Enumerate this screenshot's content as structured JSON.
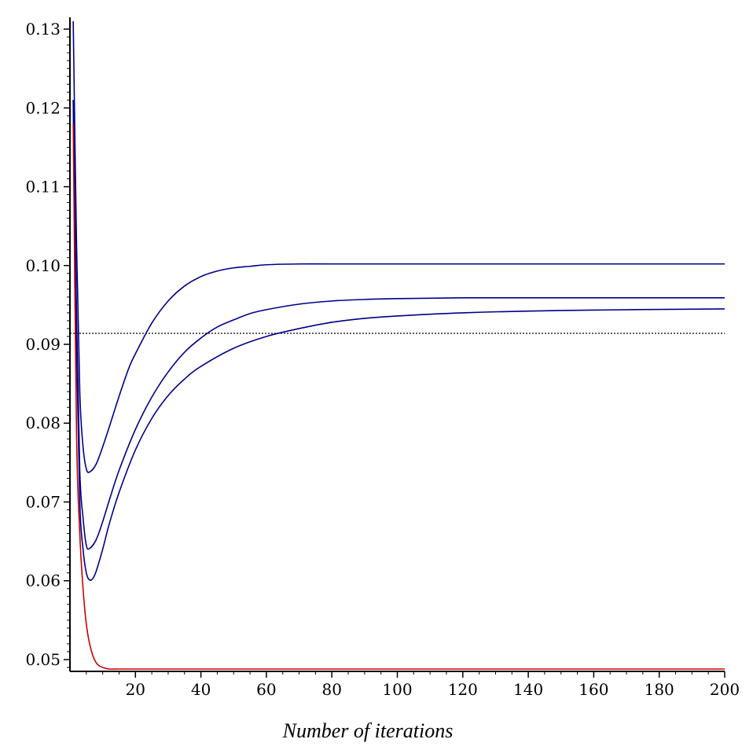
{
  "chart_data": {
    "type": "line",
    "title": "",
    "xlabel": "Number of iterations",
    "ylabel": "",
    "xlim": [
      0,
      200
    ],
    "ylim": [
      0.0485,
      0.1315
    ],
    "x_ticks": [
      20,
      40,
      60,
      80,
      100,
      120,
      140,
      160,
      180,
      200
    ],
    "x_tick_labels": [
      "20",
      "40",
      "60",
      "80",
      "100",
      "120",
      "140",
      "160",
      "180",
      "200"
    ],
    "y_ticks": [
      0.05,
      0.06,
      0.07,
      0.08,
      0.09,
      0.1,
      0.11,
      0.12,
      0.13
    ],
    "y_tick_labels": [
      "0.05",
      "0.06",
      "0.07",
      "0.08",
      "0.09",
      "0.10",
      "0.11",
      "0.12",
      "0.13"
    ],
    "grid": false,
    "legend": "none",
    "reference_line": {
      "y": 0.0914,
      "style": "dotted",
      "color": "#000000"
    },
    "series": [
      {
        "color": "#00008b",
        "x": [
          1,
          2,
          3,
          4,
          5,
          6,
          8,
          10,
          12,
          15,
          18,
          20,
          25,
          30,
          35,
          40,
          45,
          50,
          55,
          60,
          70,
          80,
          100,
          120,
          150,
          200
        ],
        "y": [
          0.131,
          0.103,
          0.084,
          0.077,
          0.0742,
          0.0738,
          0.0748,
          0.077,
          0.0795,
          0.0834,
          0.087,
          0.0888,
          0.0927,
          0.0955,
          0.0974,
          0.0986,
          0.0993,
          0.0997,
          0.0999,
          0.1001,
          0.1002,
          0.1002,
          0.1002,
          0.1002,
          0.1002,
          0.1002
        ]
      },
      {
        "color": "#00008b",
        "x": [
          1,
          2,
          3,
          4,
          5,
          6,
          8,
          10,
          12,
          15,
          20,
          25,
          30,
          35,
          40,
          45,
          50,
          55,
          60,
          70,
          80,
          90,
          100,
          120,
          150,
          200
        ],
        "y": [
          0.121,
          0.094,
          0.074,
          0.068,
          0.0645,
          0.0641,
          0.0652,
          0.0675,
          0.0702,
          0.074,
          0.0792,
          0.0833,
          0.0865,
          0.089,
          0.0908,
          0.0922,
          0.0931,
          0.0939,
          0.0944,
          0.0951,
          0.0955,
          0.0957,
          0.0958,
          0.0959,
          0.0959,
          0.0959
        ]
      },
      {
        "color": "#00008b",
        "x": [
          1,
          2,
          3,
          4,
          5,
          6,
          7,
          8,
          10,
          12,
          15,
          20,
          25,
          30,
          35,
          40,
          50,
          60,
          70,
          80,
          90,
          100,
          120,
          150,
          200
        ],
        "y": [
          0.121,
          0.09,
          0.07,
          0.064,
          0.061,
          0.0601,
          0.0603,
          0.0612,
          0.064,
          0.0672,
          0.0712,
          0.0766,
          0.0806,
          0.0835,
          0.0856,
          0.0872,
          0.0895,
          0.091,
          0.092,
          0.0928,
          0.0933,
          0.0936,
          0.094,
          0.0943,
          0.0945
        ]
      },
      {
        "color": "#cc0000",
        "x": [
          1,
          2,
          3,
          4,
          5,
          6,
          7,
          8,
          9,
          10,
          12,
          15,
          20,
          50,
          100,
          150,
          200
        ],
        "y": [
          0.118,
          0.079,
          0.066,
          0.059,
          0.0545,
          0.052,
          0.0505,
          0.0496,
          0.0492,
          0.049,
          0.0488,
          0.0488,
          0.0488,
          0.0488,
          0.0488,
          0.0488,
          0.0488
        ]
      }
    ]
  }
}
